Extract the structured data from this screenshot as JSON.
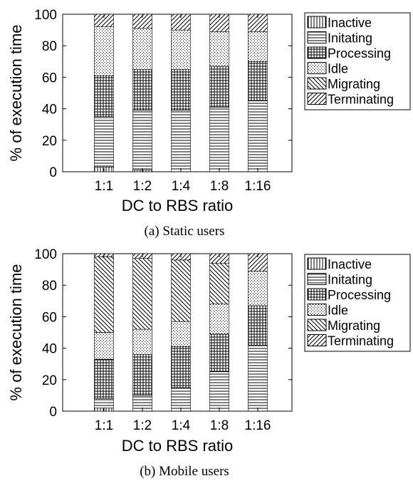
{
  "chart_data": [
    {
      "type": "bar",
      "stacked": true,
      "caption": "(a) Static users",
      "xlabel": "DC to RBS ratio",
      "ylabel": "% of execution time",
      "ylim": [
        0,
        100
      ],
      "yticks": [
        0,
        20,
        40,
        60,
        80,
        100
      ],
      "categories": [
        "1:1",
        "1:2",
        "1:4",
        "1:8",
        "1:16"
      ],
      "legend": "right",
      "series": [
        {
          "name": "Inactive",
          "pattern": "vertical-lines",
          "values": [
            3,
            1,
            0,
            0,
            0
          ]
        },
        {
          "name": "Initating",
          "pattern": "horizontal-lines",
          "values": [
            32,
            38,
            39,
            41,
            45
          ]
        },
        {
          "name": "Processing",
          "pattern": "grid",
          "values": [
            26,
            26,
            26,
            26,
            25
          ]
        },
        {
          "name": "Idle",
          "pattern": "dots",
          "values": [
            31,
            26,
            25,
            22,
            19
          ]
        },
        {
          "name": "Migrating",
          "pattern": "back-diagonal",
          "values": [
            0,
            0,
            0,
            0,
            0
          ]
        },
        {
          "name": "Terminating",
          "pattern": "forward-diagonal",
          "values": [
            8,
            9,
            10,
            11,
            11
          ]
        }
      ]
    },
    {
      "type": "bar",
      "stacked": true,
      "caption": "(b) Mobile users",
      "xlabel": "DC to RBS ratio",
      "ylabel": "% of execution time",
      "ylim": [
        0,
        100
      ],
      "yticks": [
        0,
        20,
        40,
        60,
        80,
        100
      ],
      "categories": [
        "1:1",
        "1:2",
        "1:4",
        "1:8",
        "1:16"
      ],
      "legend": "right",
      "series": [
        {
          "name": "Inactive",
          "pattern": "vertical-lines",
          "values": [
            2,
            0,
            0,
            0,
            0
          ]
        },
        {
          "name": "Initating",
          "pattern": "horizontal-lines",
          "values": [
            6,
            10,
            15,
            25,
            42
          ]
        },
        {
          "name": "Processing",
          "pattern": "grid",
          "values": [
            25,
            26,
            26,
            24,
            25
          ]
        },
        {
          "name": "Idle",
          "pattern": "dots",
          "values": [
            17,
            16,
            16,
            19,
            22
          ]
        },
        {
          "name": "Migrating",
          "pattern": "back-diagonal",
          "values": [
            48,
            45,
            39,
            26,
            0
          ]
        },
        {
          "name": "Terminating",
          "pattern": "forward-diagonal",
          "values": [
            2,
            3,
            4,
            6,
            11
          ]
        }
      ]
    }
  ]
}
